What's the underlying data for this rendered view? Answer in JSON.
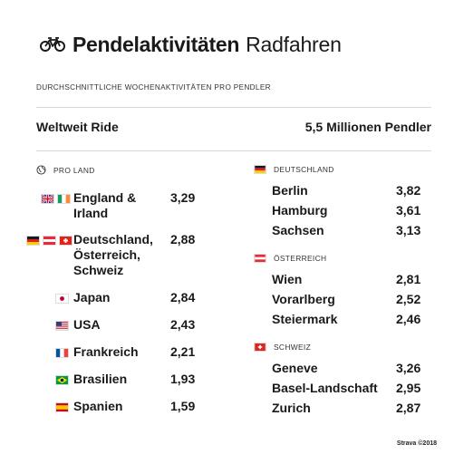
{
  "header": {
    "title_bold": "Pendelaktivitäten",
    "title_light": "Radfahren",
    "subtitle": "DURCHSCHNITTLICHE WOCHENAKTIVITÄTEN PRO PENDLER",
    "scope": "Weltweit Ride",
    "commuters": "5,5 Millionen Pendler"
  },
  "by_country": {
    "heading": "PRO LAND",
    "rows": [
      {
        "name": "England &\nIrland",
        "value": "3,29",
        "flags": [
          "uk-flag-icon",
          "ireland-flag-icon"
        ]
      },
      {
        "name": "Deutschland,\nÖsterreich,\nSchweiz",
        "value": "2,88",
        "flags": [
          "germany-flag-icon",
          "austria-flag-icon",
          "switzerland-flag-icon"
        ]
      },
      {
        "name": "Japan",
        "value": "2,84",
        "flags": [
          "japan-flag-icon"
        ]
      },
      {
        "name": "USA",
        "value": "2,43",
        "flags": [
          "usa-flag-icon"
        ]
      },
      {
        "name": "Frankreich",
        "value": "2,21",
        "flags": [
          "france-flag-icon"
        ]
      },
      {
        "name": "Brasilien",
        "value": "1,93",
        "flags": [
          "brazil-flag-icon"
        ]
      },
      {
        "name": "Spanien",
        "value": "1,59",
        "flags": [
          "spain-flag-icon"
        ]
      }
    ]
  },
  "regions": [
    {
      "heading": "DEUTSCHLAND",
      "flag": "germany-flag-icon",
      "rows": [
        {
          "name": "Berlin",
          "value": "3,82"
        },
        {
          "name": "Hamburg",
          "value": "3,61"
        },
        {
          "name": "Sachsen",
          "value": "3,13"
        }
      ]
    },
    {
      "heading": "ÖSTERREICH",
      "flag": "austria-flag-icon",
      "rows": [
        {
          "name": "Wien",
          "value": "2,81"
        },
        {
          "name": "Vorarlberg",
          "value": "2,52"
        },
        {
          "name": "Steiermark",
          "value": "2,46"
        }
      ]
    },
    {
      "heading": "SCHWEIZ",
      "flag": "switzerland-flag-icon",
      "rows": [
        {
          "name": "Geneve",
          "value": "3,26"
        },
        {
          "name": "Basel-Landschaft",
          "value": "2,95"
        },
        {
          "name": "Zurich",
          "value": "2,87"
        }
      ]
    }
  ],
  "credit": "Strava ©2018"
}
